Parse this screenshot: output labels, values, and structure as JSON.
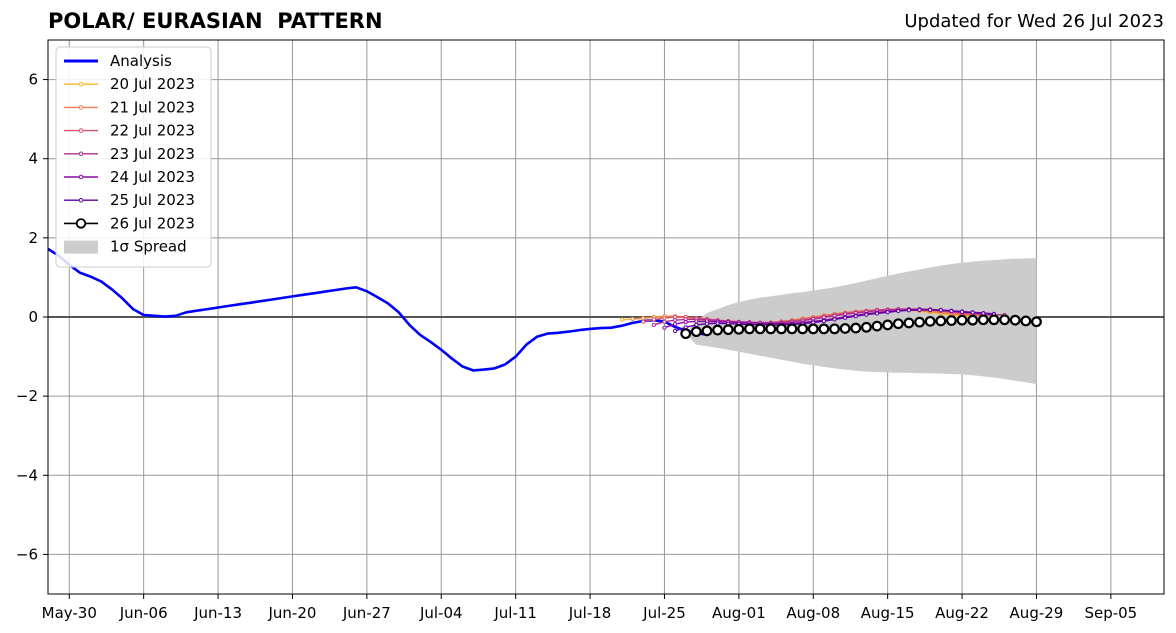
{
  "title": "POLAR/ EURASIAN  PATTERN",
  "subtitle": "Updated for Wed 26 Jul 2023",
  "chart_data": {
    "type": "line",
    "x_axis": {
      "range": [
        "2023-05-28",
        "2023-09-10"
      ],
      "ticks": [
        {
          "date": "2023-05-30",
          "label": "May-30"
        },
        {
          "date": "2023-06-06",
          "label": "Jun-06"
        },
        {
          "date": "2023-06-13",
          "label": "Jun-13"
        },
        {
          "date": "2023-06-20",
          "label": "Jun-20"
        },
        {
          "date": "2023-06-27",
          "label": "Jun-27"
        },
        {
          "date": "2023-07-04",
          "label": "Jul-04"
        },
        {
          "date": "2023-07-11",
          "label": "Jul-11"
        },
        {
          "date": "2023-07-18",
          "label": "Jul-18"
        },
        {
          "date": "2023-07-25",
          "label": "Jul-25"
        },
        {
          "date": "2023-08-01",
          "label": "Aug-01"
        },
        {
          "date": "2023-08-08",
          "label": "Aug-08"
        },
        {
          "date": "2023-08-15",
          "label": "Aug-15"
        },
        {
          "date": "2023-08-22",
          "label": "Aug-22"
        },
        {
          "date": "2023-08-29",
          "label": "Aug-29"
        },
        {
          "date": "2023-09-05",
          "label": "Sep-05"
        }
      ]
    },
    "y_axis": {
      "range": [
        -7,
        7
      ],
      "ticks": [
        {
          "value": -6,
          "label": "−6"
        },
        {
          "value": -4,
          "label": "−4"
        },
        {
          "value": -2,
          "label": "−2"
        },
        {
          "value": 0,
          "label": "0"
        },
        {
          "value": 2,
          "label": "2"
        },
        {
          "value": 4,
          "label": "4"
        },
        {
          "value": 6,
          "label": "6"
        }
      ]
    },
    "grid": true,
    "legend": {
      "position": "top-left",
      "entries": [
        {
          "label": "Analysis",
          "color": "#0000ff",
          "kind": "thick-line"
        },
        {
          "label": "20 Jul 2023",
          "color": "#fdb32f",
          "kind": "line-marker"
        },
        {
          "label": "21 Jul 2023",
          "color": "#f0804c",
          "kind": "line-marker"
        },
        {
          "label": "22 Jul 2023",
          "color": "#d5536f",
          "kind": "line-marker"
        },
        {
          "label": "23 Jul 2023",
          "color": "#b12a90",
          "kind": "line-marker"
        },
        {
          "label": "24 Jul 2023",
          "color": "#8b0aa5",
          "kind": "line-marker"
        },
        {
          "label": "25 Jul 2023",
          "color": "#5c01a6",
          "kind": "line-marker"
        },
        {
          "label": "26 Jul 2023",
          "color": "#000000",
          "kind": "open-circle"
        },
        {
          "label": "1σ Spread",
          "color": "#cccccc",
          "kind": "patch"
        }
      ]
    },
    "analysis": {
      "start_date": "2023-05-28",
      "values": [
        1.72,
        1.55,
        1.32,
        1.12,
        1.02,
        0.9,
        0.7,
        0.47,
        0.2,
        0.05,
        0.03,
        0.01,
        0.03,
        0.12,
        0.16,
        0.2,
        0.24,
        0.28,
        0.32,
        0.36,
        0.4,
        0.44,
        0.48,
        0.52,
        0.56,
        0.6,
        0.64,
        0.68,
        0.72,
        0.75,
        0.65,
        0.5,
        0.34,
        0.12,
        -0.2,
        -0.45,
        -0.63,
        -0.83,
        -1.05,
        -1.25,
        -1.35,
        -1.33,
        -1.3,
        -1.2,
        -1.0,
        -0.7,
        -0.5,
        -0.42,
        -0.4,
        -0.37,
        -0.33,
        -0.3,
        -0.28,
        -0.27,
        -0.22,
        -0.15,
        -0.1,
        -0.08,
        -0.12,
        -0.25,
        -0.35,
        -0.4,
        -0.45
      ]
    },
    "forecasts": [
      {
        "name": "20 Jul 2023",
        "start_date": "2023-07-21",
        "values": [
          -0.07,
          -0.05,
          -0.03,
          -0.01,
          0.0,
          0.0,
          -0.02,
          -0.05,
          -0.08,
          -0.1,
          -0.13,
          -0.15,
          -0.16,
          -0.16,
          -0.15,
          -0.12,
          -0.08,
          -0.04,
          0.0,
          0.04,
          0.07,
          0.1,
          0.13,
          0.15,
          0.17,
          0.18,
          0.18,
          0.17,
          0.15,
          0.12,
          0.08,
          0.05,
          0.03,
          0.02
        ]
      },
      {
        "name": "21 Jul 2023",
        "start_date": "2023-07-22",
        "values": [
          -0.05,
          -0.03,
          0.0,
          0.02,
          0.02,
          0.0,
          -0.03,
          -0.06,
          -0.09,
          -0.12,
          -0.14,
          -0.15,
          -0.15,
          -0.14,
          -0.11,
          -0.08,
          -0.04,
          0.0,
          0.04,
          0.08,
          0.11,
          0.14,
          0.16,
          0.18,
          0.19,
          0.19,
          0.18,
          0.16,
          0.14,
          0.11,
          0.08,
          0.06,
          0.04,
          0.03
        ]
      },
      {
        "name": "22 Jul 2023",
        "start_date": "2023-07-23",
        "values": [
          -0.12,
          -0.06,
          -0.03,
          0.0,
          0.0,
          -0.02,
          -0.05,
          -0.08,
          -0.1,
          -0.12,
          -0.13,
          -0.14,
          -0.14,
          -0.12,
          -0.09,
          -0.06,
          -0.02,
          0.02,
          0.06,
          0.1,
          0.13,
          0.16,
          0.18,
          0.19,
          0.2,
          0.2,
          0.19,
          0.17,
          0.15,
          0.12,
          0.09,
          0.07,
          0.05,
          0.04
        ]
      },
      {
        "name": "23 Jul 2023",
        "start_date": "2023-07-24",
        "values": [
          -0.2,
          -0.12,
          -0.08,
          -0.06,
          -0.06,
          -0.07,
          -0.09,
          -0.11,
          -0.13,
          -0.14,
          -0.15,
          -0.15,
          -0.14,
          -0.12,
          -0.09,
          -0.05,
          -0.01,
          0.03,
          0.07,
          0.1,
          0.13,
          0.16,
          0.18,
          0.19,
          0.2,
          0.2,
          0.19,
          0.17,
          0.15,
          0.12,
          0.1,
          0.08,
          0.06,
          0.05
        ]
      },
      {
        "name": "24 Jul 2023",
        "start_date": "2023-07-25",
        "values": [
          -0.27,
          -0.18,
          -0.13,
          -0.11,
          -0.11,
          -0.12,
          -0.13,
          -0.14,
          -0.15,
          -0.16,
          -0.17,
          -0.17,
          -0.16,
          -0.14,
          -0.11,
          -0.08,
          -0.04,
          0.0,
          0.04,
          0.08,
          0.11,
          0.14,
          0.16,
          0.18,
          0.19,
          0.19,
          0.18,
          0.16,
          0.14,
          0.12,
          0.1,
          0.08
        ]
      },
      {
        "name": "25 Jul 2023",
        "start_date": "2023-07-26",
        "values": [
          -0.35,
          -0.26,
          -0.2,
          -0.17,
          -0.16,
          -0.17,
          -0.18,
          -0.19,
          -0.2,
          -0.2,
          -0.2,
          -0.19,
          -0.17,
          -0.14,
          -0.1,
          -0.06,
          -0.02,
          0.02,
          0.06,
          0.09,
          0.12,
          0.15,
          0.17,
          0.18,
          0.18,
          0.17,
          0.15,
          0.13,
          0.11,
          0.09,
          0.07
        ]
      },
      {
        "name": "26 Jul 2023",
        "start_date": "2023-07-27",
        "values": [
          -0.42,
          -0.37,
          -0.35,
          -0.33,
          -0.32,
          -0.31,
          -0.3,
          -0.3,
          -0.3,
          -0.3,
          -0.3,
          -0.3,
          -0.3,
          -0.3,
          -0.3,
          -0.29,
          -0.28,
          -0.26,
          -0.23,
          -0.2,
          -0.17,
          -0.15,
          -0.13,
          -0.11,
          -0.1,
          -0.09,
          -0.08,
          -0.08,
          -0.07,
          -0.07,
          -0.07,
          -0.08,
          -0.1,
          -0.12
        ]
      }
    ],
    "spread": {
      "start_date": "2023-07-27",
      "upper": [
        -0.42,
        -0.1,
        0.1,
        0.2,
        0.3,
        0.38,
        0.44,
        0.49,
        0.52,
        0.56,
        0.6,
        0.63,
        0.67,
        0.71,
        0.75,
        0.8,
        0.86,
        0.92,
        0.98,
        1.04,
        1.1,
        1.15,
        1.2,
        1.25,
        1.3,
        1.34,
        1.37,
        1.4,
        1.42,
        1.44,
        1.46,
        1.47,
        1.48,
        1.49
      ],
      "lower": [
        -0.42,
        -0.7,
        -0.74,
        -0.78,
        -0.83,
        -0.88,
        -0.93,
        -0.98,
        -1.03,
        -1.08,
        -1.13,
        -1.18,
        -1.22,
        -1.26,
        -1.3,
        -1.33,
        -1.36,
        -1.38,
        -1.39,
        -1.4,
        -1.41,
        -1.41,
        -1.42,
        -1.42,
        -1.43,
        -1.44,
        -1.45,
        -1.47,
        -1.5,
        -1.53,
        -1.57,
        -1.61,
        -1.65,
        -1.7
      ]
    }
  }
}
